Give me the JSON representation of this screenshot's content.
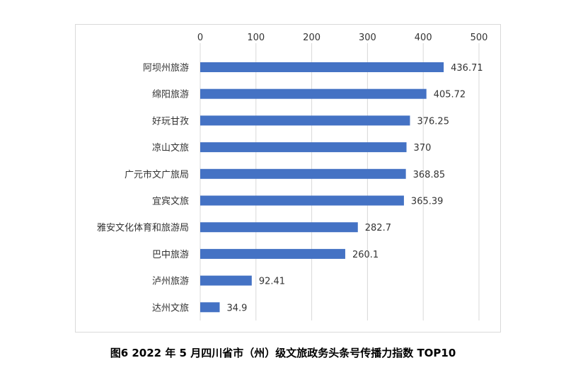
{
  "caption": "图6   2022 年 5 月四川省市（州）级文旅政务头条号传播力指数 TOP10",
  "chart_data": {
    "type": "bar",
    "orientation": "horizontal",
    "categories": [
      "阿坝州旅游",
      "绵阳旅游",
      "好玩甘孜",
      "凉山文旅",
      "广元市文广旅局",
      "宜宾文旅",
      "雅安文化体育和旅游局",
      "巴中旅游",
      "泸州旅游",
      "达州文旅"
    ],
    "values": [
      436.71,
      405.72,
      376.25,
      370,
      368.85,
      365.39,
      282.7,
      260.1,
      92.41,
      34.9
    ],
    "data_labels": [
      "436.71",
      "405.72",
      "376.25",
      "370",
      "368.85",
      "365.39",
      "282.7",
      "260.1",
      "92.41",
      "34.9"
    ],
    "xlim": [
      0,
      500
    ],
    "x_ticks": [
      0,
      100,
      200,
      300,
      400,
      500
    ],
    "x_tick_labels": [
      "0",
      "100",
      "200",
      "300",
      "400",
      "500"
    ],
    "x_axis_position": "top",
    "grid": true,
    "legend": "none",
    "bar_color": "#4472C4"
  }
}
